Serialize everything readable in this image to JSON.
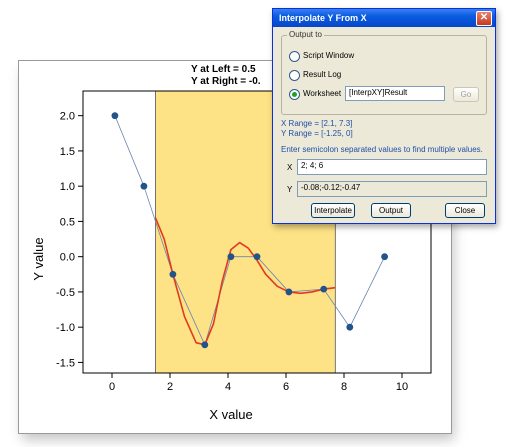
{
  "graph": {
    "header_line1": "Y at Left = 0.5",
    "header_line2": "Y at Right = -0.",
    "xlabel": "X value",
    "ylabel": "Y value",
    "x_ticks": [
      "0",
      "2",
      "4",
      "6",
      "8",
      "10"
    ],
    "y_ticks": [
      "2.0",
      "1.5",
      "1.0",
      "0.5",
      "0.0",
      "-0.5",
      "-1.0",
      "-1.5"
    ],
    "colors": {
      "range_fill": "#fde286",
      "points": "#22548a",
      "point_line": "#6c86b0",
      "curve": "#e23a1e"
    }
  },
  "chart_data": {
    "type": "scatter",
    "xlabel": "X value",
    "ylabel": "Y value",
    "xlim": [
      -1,
      11
    ],
    "ylim": [
      -1.65,
      2.35
    ],
    "highlight_range": [
      1.5,
      7.7
    ],
    "series": [
      {
        "x": [
          0.1,
          1.1,
          2.1,
          3.2,
          4.1,
          5.0,
          6.1,
          7.3,
          8.2,
          9.4
        ],
        "y": [
          2.0,
          1.0,
          -0.25,
          -1.25,
          0.0,
          0.0,
          -0.5,
          -0.46,
          -1.0,
          0.0
        ]
      }
    ],
    "fit_curve": {
      "x": [
        1.5,
        1.8,
        2.1,
        2.5,
        2.9,
        3.2,
        3.5,
        3.8,
        4.1,
        4.4,
        4.7,
        5.0,
        5.3,
        5.7,
        6.1,
        6.5,
        6.9,
        7.3,
        7.7
      ],
      "y": [
        0.55,
        0.25,
        -0.25,
        -0.85,
        -1.22,
        -1.25,
        -0.95,
        -0.35,
        0.1,
        0.2,
        0.12,
        -0.05,
        -0.25,
        -0.42,
        -0.5,
        -0.52,
        -0.5,
        -0.46,
        -0.44
      ]
    }
  },
  "dialog": {
    "title": "Interpolate Y From X",
    "close": "✕",
    "group_label": "Output to",
    "radio_script": "Script Window",
    "radio_result": "Result Log",
    "radio_worksheet": "Worksheet",
    "worksheet_value": "[InterpXY]Result",
    "go_label": "Go",
    "x_range": "X Range = [2.1, 7.3]",
    "y_range": "Y Range = [-1.25, 0]",
    "hint": "Enter semicolon separated values to find multiple values.",
    "x_label": "X",
    "x_value": "2; 4; 6",
    "y_label": "Y",
    "y_value": "-0.08;-0.12;-0.47",
    "btn_interpolate": "Interpolate",
    "btn_output": "Output",
    "btn_close": "Close"
  }
}
